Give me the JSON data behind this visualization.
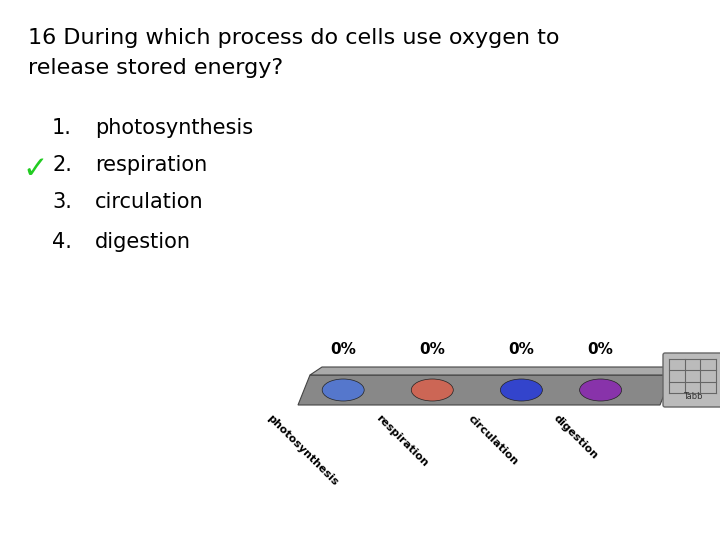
{
  "title_line1": "16 During which process do cells use oxygen to",
  "title_line2": "release stored energy?",
  "options": [
    "photosynthesis",
    "respiration",
    "circulation",
    "digestion"
  ],
  "option_numbers": [
    "1.",
    "2.",
    "3.",
    "4."
  ],
  "correct_index": 1,
  "checkmark_color": "#22cc22",
  "bg_color": "#ffffff",
  "text_color": "#000000",
  "title_fontsize": 16,
  "option_fontsize": 15,
  "bar_color": "#888888",
  "percentages": [
    "0%",
    "0%",
    "0%",
    "0%"
  ],
  "dot_colors": [
    "#5577cc",
    "#cc6655",
    "#3344cc",
    "#8833aa"
  ],
  "pct_fontsize": 11,
  "label_fontsize": 8
}
